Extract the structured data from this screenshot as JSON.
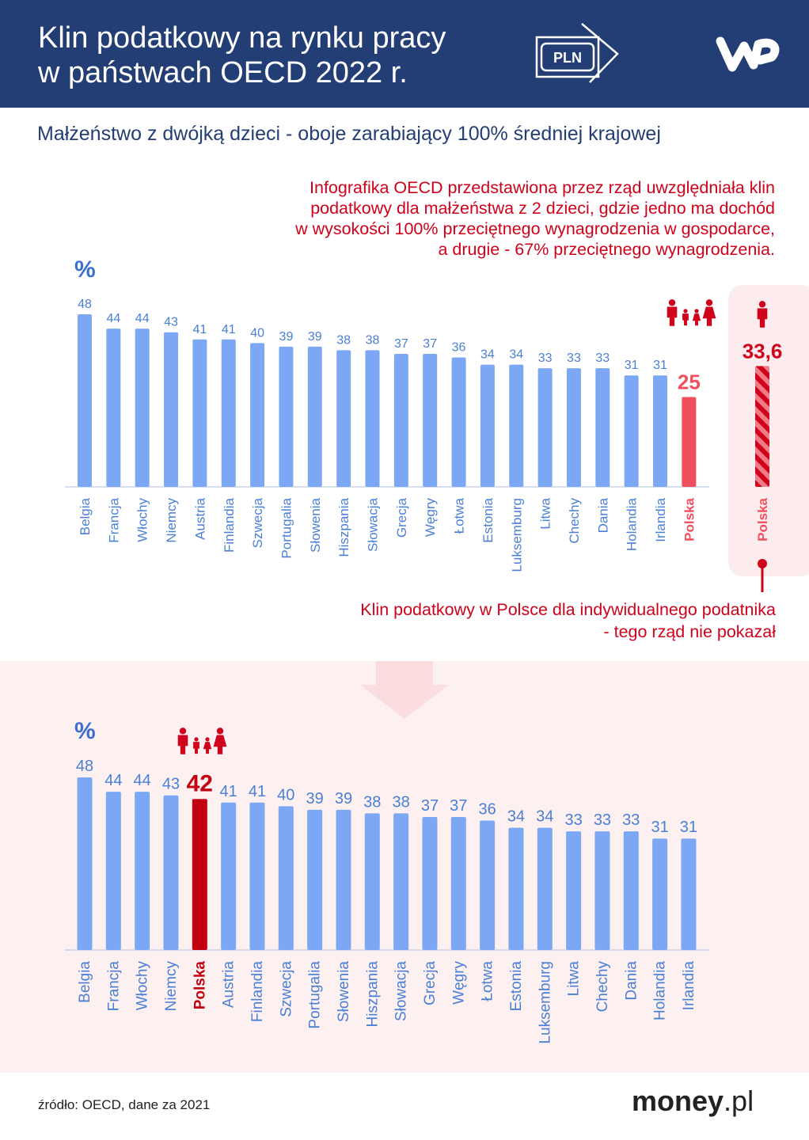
{
  "header": {
    "title_line1": "Klin podatkowy na rynku pracy",
    "title_line2": "w państwach OECD 2022 r.",
    "banknote_label": "PLN",
    "logo": "WP"
  },
  "subtitle": "Małżeństwo z dwójką dzieci - oboje zarabiający 100% średniej krajowej",
  "note_top": [
    "Infografika OECD przedstawiona przez rząd uwzględniała klin",
    "podatkowy dla małżeństwa z 2 dzieci, gdzie jedno ma dochód",
    "w wysokości 100% przeciętnego wynagrodzenia w gospodarce,",
    "a drugie - 67% przeciętnego wynagrodzenia."
  ],
  "note_bottom": [
    "Klin podatkowy w Polsce dla indywidualnego podatnika",
    "- tego rząd nie pokazał"
  ],
  "source": "źródło: OECD, dane za 2021",
  "brand": {
    "bold": "money",
    "light": ".pl"
  },
  "colors": {
    "bar": "#7ba7f4",
    "label": "#4a7fd6",
    "highlight": "#f0505e",
    "highlight_dark": "#c3000f",
    "red": "#d0021b",
    "header": "#233e74"
  },
  "chart_data": [
    {
      "type": "bar",
      "unit_label": "%",
      "icon": "family-icon",
      "categories": [
        "Belgia",
        "Francja",
        "Włochy",
        "Niemcy",
        "Austria",
        "Finlandia",
        "Szwecja",
        "Portugalia",
        "Słowenia",
        "Hiszpania",
        "Słowacja",
        "Grecja",
        "Węgry",
        "Łotwa",
        "Estonia",
        "Luksemburg",
        "Litwa",
        "Chechy",
        "Dania",
        "Holandia",
        "Irlandia",
        "Polska"
      ],
      "values": [
        48,
        44,
        44,
        43,
        41,
        41,
        40,
        39,
        39,
        38,
        38,
        37,
        37,
        36,
        34,
        34,
        33,
        33,
        33,
        31,
        31,
        25
      ],
      "value_labels": [
        "48",
        "44",
        "44",
        "43",
        "41",
        "41",
        "40",
        "39",
        "39",
        "38",
        "38",
        "37",
        "37",
        "36",
        "34",
        "34",
        "33",
        "33",
        "33",
        "31",
        "31",
        "25"
      ],
      "highlight": "Polska",
      "ylim": [
        0,
        50
      ]
    },
    {
      "type": "bar",
      "unit_label": "",
      "icon": "person-icon",
      "categories": [
        "Polska"
      ],
      "values": [
        33.6
      ],
      "value_labels": [
        "33,6"
      ],
      "pattern": "striped",
      "ylim": [
        0,
        50
      ]
    },
    {
      "type": "bar",
      "unit_label": "%",
      "icon": "family-icon",
      "categories": [
        "Belgia",
        "Francja",
        "Włochy",
        "Niemcy",
        "Polska",
        "Austria",
        "Finlandia",
        "Szwecja",
        "Portugalia",
        "Słowenia",
        "Hiszpania",
        "Słowacja",
        "Grecja",
        "Węgry",
        "Łotwa",
        "Estonia",
        "Luksemburg",
        "Litwa",
        "Chechy",
        "Dania",
        "Holandia",
        "Irlandia"
      ],
      "values": [
        48,
        44,
        44,
        43,
        42,
        41,
        41,
        40,
        39,
        39,
        38,
        38,
        37,
        37,
        36,
        34,
        34,
        33,
        33,
        33,
        31,
        31
      ],
      "value_labels": [
        "48",
        "44",
        "44",
        "43",
        "42",
        "41",
        "41",
        "40",
        "39",
        "39",
        "38",
        "38",
        "37",
        "37",
        "36",
        "34",
        "34",
        "33",
        "33",
        "33",
        "31",
        "31"
      ],
      "highlight": "Polska",
      "ylim": [
        0,
        50
      ]
    }
  ]
}
